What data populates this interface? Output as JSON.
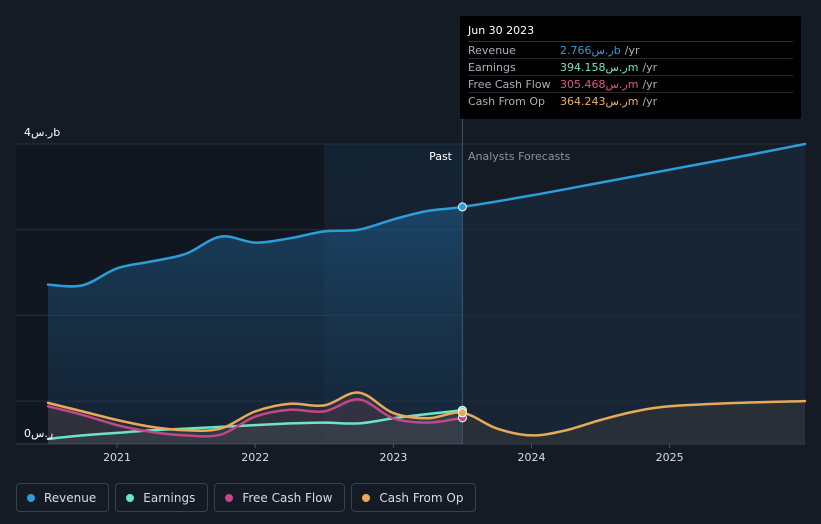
{
  "tooltip": {
    "date": "Jun 30 2023",
    "rows": [
      {
        "label": "Revenue",
        "value": "2.766ر.سb",
        "unit": "/yr",
        "color": "#2d9cdb"
      },
      {
        "label": "Earnings",
        "value": "394.158ر.سm",
        "unit": "/yr",
        "color": "#6fe3c8"
      },
      {
        "label": "Free Cash Flow",
        "value": "305.468ر.سm",
        "unit": "/yr",
        "color": "#e0568f"
      },
      {
        "label": "Cash From Op",
        "value": "364.243ر.سm",
        "unit": "/yr",
        "color": "#f0b060"
      }
    ]
  },
  "legend": [
    {
      "label": "Revenue",
      "color": "#2d9cdb"
    },
    {
      "label": "Earnings",
      "color": "#6fe3c8"
    },
    {
      "label": "Free Cash Flow",
      "color": "#c3468a"
    },
    {
      "label": "Cash From Op",
      "color": "#e8a95a"
    }
  ],
  "chart_data": {
    "type": "line",
    "y_top_label": "4ر.سb",
    "y_bottom_label": "0ر.س",
    "ylim": [
      0,
      3.5
    ],
    "xlim": [
      2020.5,
      2025.98
    ],
    "x_ticks": [
      {
        "value": 2021,
        "label": "2021"
      },
      {
        "value": 2022,
        "label": "2022"
      },
      {
        "value": 2023,
        "label": "2023"
      },
      {
        "value": 2024,
        "label": "2024"
      },
      {
        "value": 2025,
        "label": "2025"
      }
    ],
    "past_label": "Past",
    "forecast_label": "Analysts Forecasts",
    "divider_x": 2023.5,
    "highlight_start_x": 2022.5,
    "series": [
      {
        "name": "Revenue",
        "color": "#2d9cdb",
        "fill": true,
        "past": [
          [
            2020.5,
            1.86
          ],
          [
            2020.75,
            1.85
          ],
          [
            2021.0,
            2.05
          ],
          [
            2021.25,
            2.13
          ],
          [
            2021.5,
            2.22
          ],
          [
            2021.75,
            2.42
          ],
          [
            2022.0,
            2.35
          ],
          [
            2022.25,
            2.4
          ],
          [
            2022.5,
            2.48
          ],
          [
            2022.75,
            2.5
          ],
          [
            2023.0,
            2.62
          ],
          [
            2023.25,
            2.72
          ],
          [
            2023.5,
            2.766
          ]
        ],
        "forecast": [
          [
            2023.5,
            2.766
          ],
          [
            2024.0,
            2.9
          ],
          [
            2024.5,
            3.05
          ],
          [
            2025.0,
            3.2
          ],
          [
            2025.5,
            3.35
          ],
          [
            2025.98,
            3.5
          ]
        ]
      },
      {
        "name": "Earnings",
        "color": "#6fe3c8",
        "fill": false,
        "past": [
          [
            2020.5,
            0.06
          ],
          [
            2020.75,
            0.1
          ],
          [
            2021.0,
            0.13
          ],
          [
            2021.25,
            0.16
          ],
          [
            2021.5,
            0.18
          ],
          [
            2021.75,
            0.2
          ],
          [
            2022.0,
            0.22
          ],
          [
            2022.25,
            0.24
          ],
          [
            2022.5,
            0.25
          ],
          [
            2022.75,
            0.24
          ],
          [
            2023.0,
            0.3
          ],
          [
            2023.25,
            0.35
          ],
          [
            2023.5,
            0.394
          ]
        ],
        "forecast": []
      },
      {
        "name": "Free Cash Flow",
        "color": "#c3468a",
        "fill": false,
        "past": [
          [
            2020.5,
            0.44
          ],
          [
            2020.75,
            0.34
          ],
          [
            2021.0,
            0.22
          ],
          [
            2021.25,
            0.14
          ],
          [
            2021.5,
            0.1
          ],
          [
            2021.75,
            0.11
          ],
          [
            2022.0,
            0.32
          ],
          [
            2022.25,
            0.4
          ],
          [
            2022.5,
            0.38
          ],
          [
            2022.75,
            0.52
          ],
          [
            2023.0,
            0.3
          ],
          [
            2023.25,
            0.25
          ],
          [
            2023.5,
            0.305
          ]
        ],
        "forecast": []
      },
      {
        "name": "Cash From Op",
        "color": "#e8a95a",
        "fill": false,
        "past": [
          [
            2020.5,
            0.48
          ],
          [
            2020.75,
            0.38
          ],
          [
            2021.0,
            0.28
          ],
          [
            2021.25,
            0.2
          ],
          [
            2021.5,
            0.16
          ],
          [
            2021.75,
            0.18
          ],
          [
            2022.0,
            0.38
          ],
          [
            2022.25,
            0.47
          ],
          [
            2022.5,
            0.45
          ],
          [
            2022.75,
            0.6
          ],
          [
            2023.0,
            0.36
          ],
          [
            2023.25,
            0.3
          ],
          [
            2023.5,
            0.364
          ]
        ],
        "forecast": [
          [
            2023.5,
            0.364
          ],
          [
            2023.75,
            0.18
          ],
          [
            2024.0,
            0.1
          ],
          [
            2024.25,
            0.16
          ],
          [
            2024.5,
            0.28
          ],
          [
            2024.75,
            0.38
          ],
          [
            2025.0,
            0.44
          ],
          [
            2025.5,
            0.48
          ],
          [
            2025.98,
            0.5
          ]
        ]
      }
    ]
  }
}
